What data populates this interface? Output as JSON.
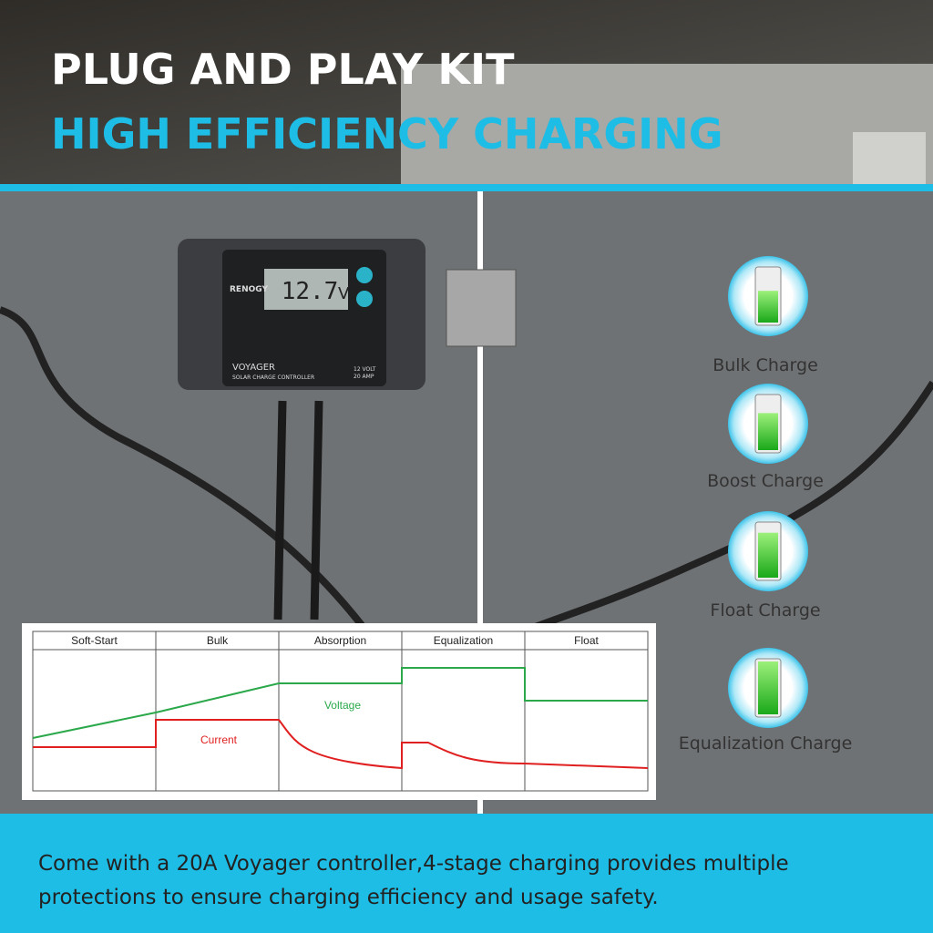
{
  "header": {
    "line1": "PLUG AND PLAY KIT",
    "line2": "HIGH EFFICIENCY CHARGING"
  },
  "controller": {
    "brand": "RENOGY",
    "display": "12.7",
    "unit": "V",
    "model": "VOYAGER",
    "subtitle": "SOLAR CHARGE CONTROLLER",
    "voltage": "12 VOLT",
    "current": "20 AMP"
  },
  "charge_stages": [
    "Bulk Charge",
    "Boost Charge",
    "Float Charge",
    "Equalization Charge"
  ],
  "diagram": {
    "stages": [
      "Soft-Start",
      "Bulk",
      "Absorption",
      "Equalization",
      "Float"
    ],
    "voltage_label": "Voltage",
    "current_label": "Current"
  },
  "caption": [
    "Come with a 20A Voyager controller,4-stage charging provides multiple",
    "protections to ensure charging efficiency and usage safety."
  ]
}
